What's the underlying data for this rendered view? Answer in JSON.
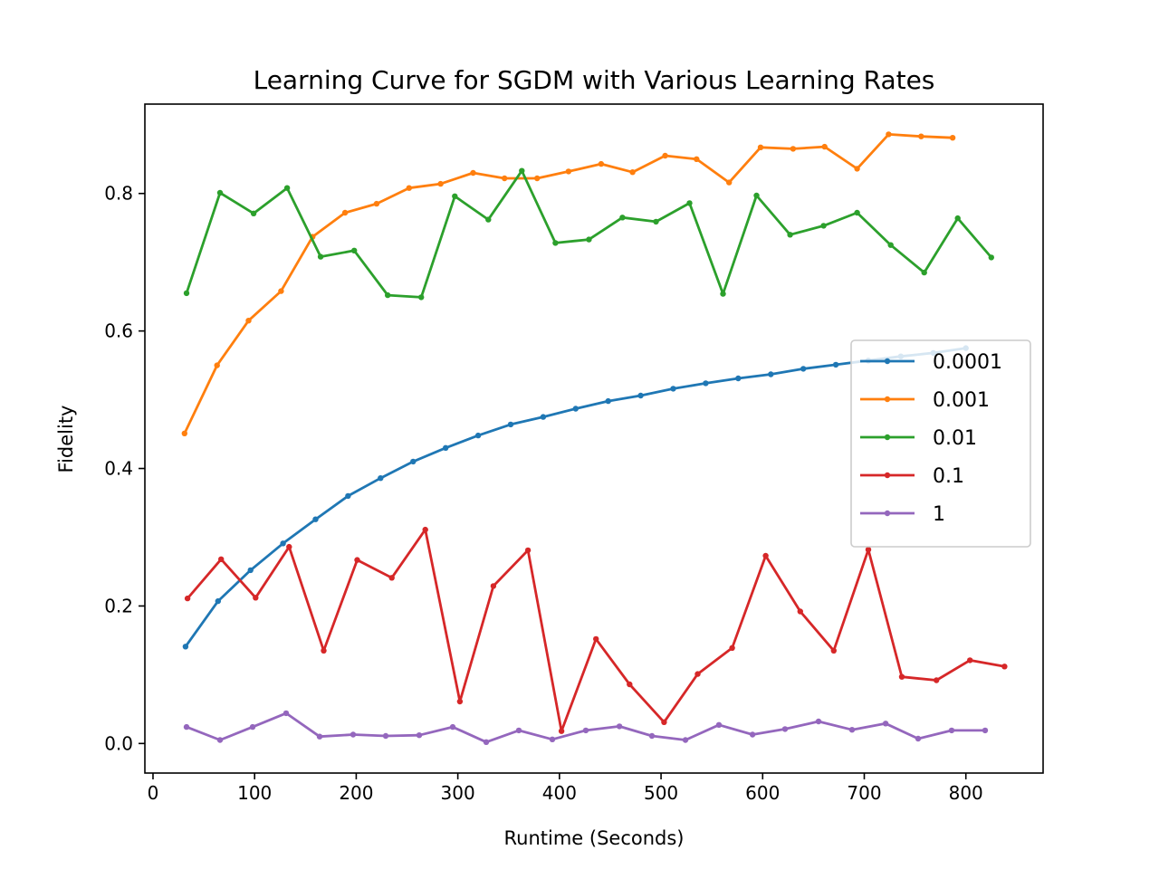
{
  "chart_data": {
    "type": "line",
    "title": "Learning Curve for SGDM with Various Learning Rates",
    "xlabel": "Runtime (Seconds)",
    "ylabel": "Fidelity",
    "xlim": [
      -8,
      876
    ],
    "ylim": [
      -0.043,
      0.93
    ],
    "xticks": [
      0,
      100,
      200,
      300,
      400,
      500,
      600,
      700,
      800
    ],
    "yticks": [
      0.0,
      0.2,
      0.4,
      0.6,
      0.8
    ],
    "xtick_labels": [
      "0",
      "100",
      "200",
      "300",
      "400",
      "500",
      "600",
      "700",
      "800"
    ],
    "ytick_labels": [
      "0.0",
      "0.2",
      "0.4",
      "0.6",
      "0.8"
    ],
    "grid": false,
    "legend_position": "center-right",
    "series": [
      {
        "name": "0.0001",
        "color": "#1f77b4",
        "x": [
          32,
          64,
          96,
          128,
          160,
          192,
          224,
          256,
          288,
          320,
          352,
          384,
          416,
          448,
          480,
          512,
          544,
          576,
          608,
          640,
          672,
          704,
          736,
          768,
          800
        ],
        "y": [
          0.141,
          0.207,
          0.252,
          0.291,
          0.326,
          0.36,
          0.386,
          0.41,
          0.43,
          0.448,
          0.464,
          0.475,
          0.487,
          0.498,
          0.506,
          0.516,
          0.524,
          0.531,
          0.537,
          0.545,
          0.551,
          0.557,
          0.563,
          0.568,
          0.575
        ]
      },
      {
        "name": "0.001",
        "color": "#ff7f0e",
        "x": [
          31,
          63,
          94,
          126,
          157,
          189,
          220,
          252,
          283,
          315,
          346,
          378,
          409,
          441,
          472,
          504,
          535,
          567,
          598,
          630,
          661,
          693,
          724,
          756,
          787
        ],
        "y": [
          0.451,
          0.55,
          0.615,
          0.658,
          0.737,
          0.772,
          0.785,
          0.808,
          0.814,
          0.83,
          0.822,
          0.822,
          0.832,
          0.843,
          0.831,
          0.855,
          0.85,
          0.816,
          0.867,
          0.865,
          0.868,
          0.836,
          0.886,
          0.883,
          0.881
        ]
      },
      {
        "name": "0.01",
        "color": "#2ca02c",
        "x": [
          33,
          66,
          99,
          132,
          165,
          198,
          231,
          264,
          297,
          330,
          363,
          396,
          429,
          462,
          495,
          528,
          561,
          594,
          627,
          660,
          693,
          726,
          759,
          792,
          825
        ],
        "y": [
          0.655,
          0.801,
          0.771,
          0.808,
          0.708,
          0.717,
          0.652,
          0.649,
          0.796,
          0.762,
          0.833,
          0.728,
          0.733,
          0.765,
          0.759,
          0.786,
          0.654,
          0.797,
          0.74,
          0.753,
          0.772,
          0.725,
          0.685,
          0.764,
          0.707
        ]
      },
      {
        "name": "0.1",
        "color": "#d62728",
        "x": [
          34,
          67,
          101,
          134,
          168,
          201,
          235,
          268,
          302,
          335,
          369,
          402,
          436,
          469,
          503,
          536,
          570,
          603,
          637,
          670,
          704,
          737,
          771,
          804,
          838
        ],
        "y": [
          0.211,
          0.268,
          0.212,
          0.286,
          0.135,
          0.267,
          0.241,
          0.311,
          0.061,
          0.229,
          0.281,
          0.018,
          0.152,
          0.086,
          0.031,
          0.101,
          0.139,
          0.273,
          0.192,
          0.135,
          0.282,
          0.097,
          0.092,
          0.121,
          0.112
        ]
      },
      {
        "name": "1",
        "color": "#9467bd",
        "x": [
          33,
          66,
          98,
          131,
          164,
          197,
          229,
          262,
          295,
          328,
          360,
          393,
          426,
          459,
          491,
          524,
          557,
          590,
          622,
          655,
          688,
          721,
          753,
          786,
          819
        ],
        "y": [
          0.024,
          0.005,
          0.024,
          0.044,
          0.01,
          0.013,
          0.011,
          0.012,
          0.024,
          0.002,
          0.019,
          0.006,
          0.019,
          0.025,
          0.011,
          0.005,
          0.027,
          0.013,
          0.021,
          0.032,
          0.02,
          0.029,
          0.007,
          0.019,
          0.019
        ]
      }
    ]
  }
}
